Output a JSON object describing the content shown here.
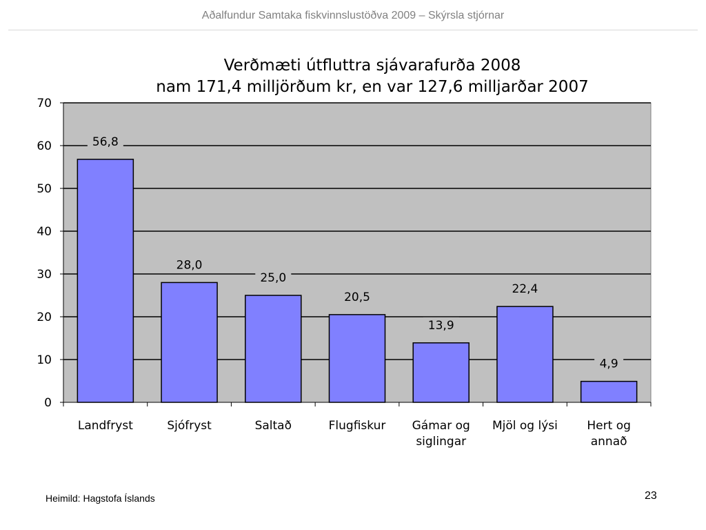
{
  "header": {
    "title": "Aðalfundur Samtaka fiskvinnslustöðva 2009 – Skýrsla stjórnar"
  },
  "footer": {
    "source": "Heimild: Hagstofa Íslands",
    "page_number": "23"
  },
  "chart_data": {
    "type": "bar",
    "title": "Verðmæti útfluttra sjávarafurða 2008",
    "subtitle": "nam 171,4 milljörðum kr, en var 127,6 milljarðar 2007",
    "categories": [
      [
        "Landfryst"
      ],
      [
        "Sjófryst"
      ],
      [
        "Saltað"
      ],
      [
        "Flugfiskur"
      ],
      [
        "Gámar og",
        "siglingar"
      ],
      [
        "Mjöl og lýsi"
      ],
      [
        "Hert og",
        "annað"
      ]
    ],
    "values": [
      56.8,
      28.0,
      25.0,
      20.5,
      13.9,
      22.4,
      4.9
    ],
    "value_labels": [
      "56,8",
      "28,0",
      "25,0",
      "20,5",
      "13,9",
      "22,4",
      "4,9"
    ],
    "ylim": [
      0,
      70
    ],
    "yticks": [
      0,
      10,
      20,
      30,
      40,
      50,
      60,
      70
    ],
    "grid": true,
    "bar_color": "#8080ff",
    "plot_background": "#c0c0c0"
  }
}
